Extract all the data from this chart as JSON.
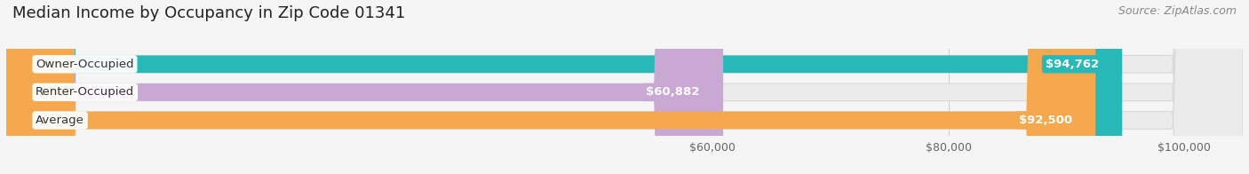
{
  "title": "Median Income by Occupancy in Zip Code 01341",
  "source": "Source: ZipAtlas.com",
  "categories": [
    "Owner-Occupied",
    "Renter-Occupied",
    "Average"
  ],
  "values": [
    94762,
    60882,
    92500
  ],
  "bar_colors": [
    "#29b8b8",
    "#c9a8d4",
    "#f5a84e"
  ],
  "bar_bg_colors": [
    "#ebebeb",
    "#ebebeb",
    "#ebebeb"
  ],
  "labels": [
    "$94,762",
    "$60,882",
    "$92,500"
  ],
  "xmin": 0,
  "xmax": 105000,
  "xticks": [
    60000,
    80000,
    100000
  ],
  "xticklabels": [
    "$60,000",
    "$80,000",
    "$100,000"
  ],
  "background_color": "#f5f5f5",
  "bar_height": 0.62,
  "title_fontsize": 13,
  "source_fontsize": 9,
  "label_fontsize": 9.5,
  "cat_fontsize": 9.5,
  "tick_fontsize": 9
}
